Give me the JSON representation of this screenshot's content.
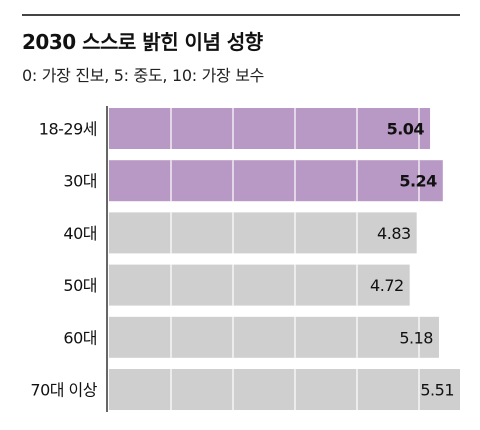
{
  "title": "2030 스스로 밝힌 이념 성향",
  "subtitle": "0: 가장 진보, 5: 중도, 10: 가장 보수",
  "colors": {
    "highlight_bar": "#b898c4",
    "normal_bar": "#cfcfcf",
    "grid_line": "#ffffff",
    "text": "#111111"
  },
  "chart_data": {
    "type": "bar",
    "orientation": "horizontal",
    "categories": [
      "18-29세",
      "30대",
      "40대",
      "50대",
      "60대",
      "70대 이상"
    ],
    "values": [
      5.04,
      5.24,
      4.83,
      4.72,
      5.18,
      5.51
    ],
    "value_labels": [
      "5.04",
      "5.24",
      "4.83",
      "4.72",
      "5.18",
      "5.51"
    ],
    "highlighted": [
      true,
      true,
      false,
      false,
      false,
      false
    ],
    "xlim": [
      0,
      5.51
    ],
    "grid": true
  }
}
